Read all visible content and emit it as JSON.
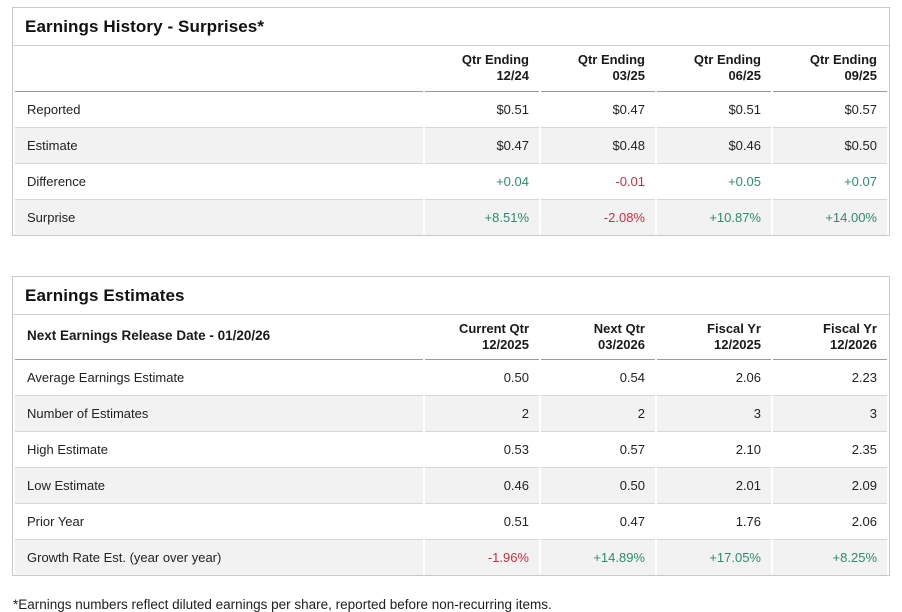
{
  "colors": {
    "positive": "#2e8b6e",
    "negative": "#c5333f"
  },
  "earnings_history": {
    "title": "Earnings History - Surprises*",
    "columns": [
      [
        "Qtr Ending",
        "12/24"
      ],
      [
        "Qtr Ending",
        "03/25"
      ],
      [
        "Qtr Ending",
        "06/25"
      ],
      [
        "Qtr Ending",
        "09/25"
      ]
    ],
    "rows": [
      {
        "label": "Reported",
        "values": [
          "$0.51",
          "$0.47",
          "$0.51",
          "$0.57"
        ]
      },
      {
        "label": "Estimate",
        "values": [
          "$0.47",
          "$0.48",
          "$0.46",
          "$0.50"
        ]
      },
      {
        "label": "Difference",
        "values": [
          "+0.04",
          "-0.01",
          "+0.05",
          "+0.07"
        ]
      },
      {
        "label": "Surprise",
        "values": [
          "+8.51%",
          "-2.08%",
          "+10.87%",
          "+14.00%"
        ]
      }
    ]
  },
  "earnings_estimates": {
    "title": "Earnings Estimates",
    "header_label": "Next Earnings Release Date - 01/20/26",
    "columns": [
      [
        "Current Qtr",
        "12/2025"
      ],
      [
        "Next Qtr",
        "03/2026"
      ],
      [
        "Fiscal Yr",
        "12/2025"
      ],
      [
        "Fiscal Yr",
        "12/2026"
      ]
    ],
    "rows": [
      {
        "label": "Average Earnings Estimate",
        "values": [
          "0.50",
          "0.54",
          "2.06",
          "2.23"
        ]
      },
      {
        "label": "Number of Estimates",
        "values": [
          "2",
          "2",
          "3",
          "3"
        ]
      },
      {
        "label": "High Estimate",
        "values": [
          "0.53",
          "0.57",
          "2.10",
          "2.35"
        ]
      },
      {
        "label": "Low Estimate",
        "values": [
          "0.46",
          "0.50",
          "2.01",
          "2.09"
        ]
      },
      {
        "label": "Prior Year",
        "values": [
          "0.51",
          "0.47",
          "1.76",
          "2.06"
        ]
      },
      {
        "label": "Growth Rate Est. (year over year)",
        "values": [
          "-1.96%",
          "+14.89%",
          "+17.05%",
          "+8.25%"
        ]
      }
    ]
  },
  "page": {
    "footnote": "*Earnings numbers reflect diluted earnings per share, reported before non-recurring items."
  }
}
